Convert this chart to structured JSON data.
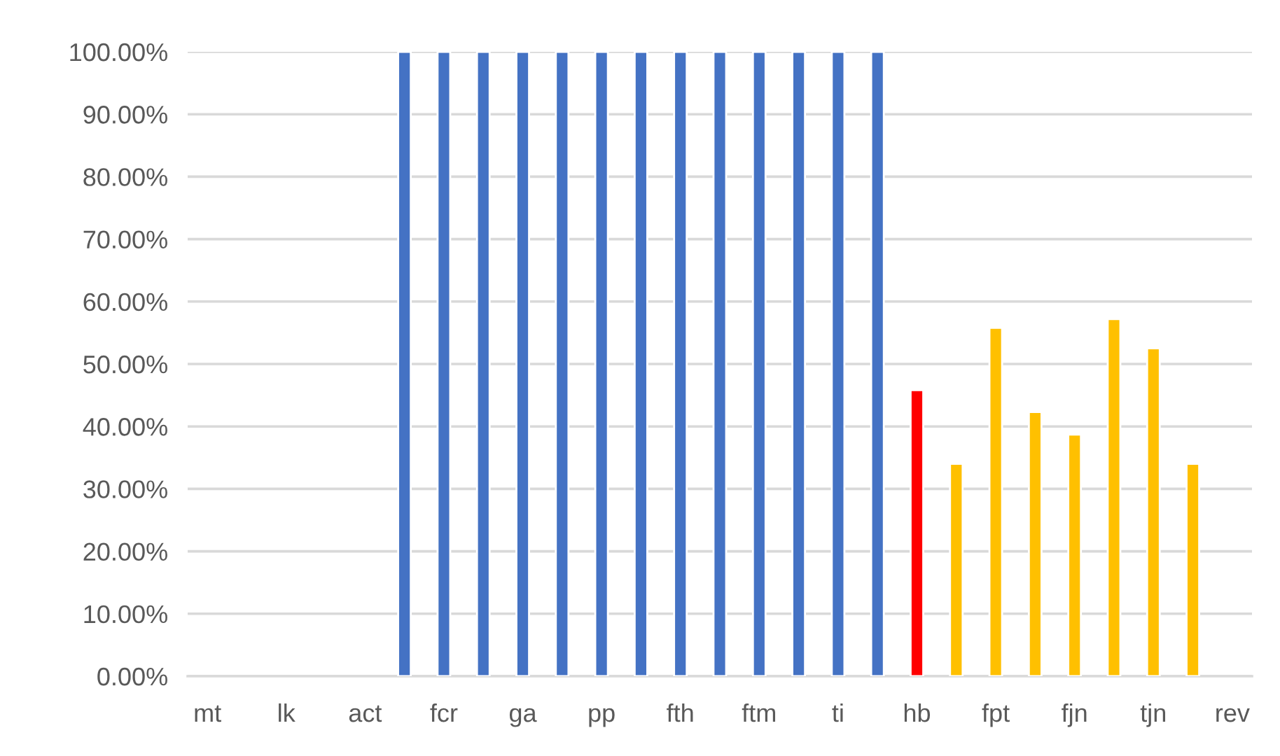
{
  "chart_data": {
    "type": "bar",
    "categories": [
      "mt",
      null,
      "lk",
      null,
      "act",
      null,
      "fcr",
      null,
      "ga",
      null,
      "pp",
      null,
      "fth",
      null,
      "ftm",
      null,
      "ti",
      null,
      "hb",
      null,
      "fpt",
      null,
      "fjn",
      null,
      "tjn",
      null,
      "rev"
    ],
    "values": [
      null,
      null,
      null,
      null,
      null,
      100,
      100,
      100,
      100,
      100,
      100,
      100,
      100,
      100,
      100,
      100,
      100,
      100,
      45.8,
      34.0,
      55.8,
      42.3,
      38.7,
      57.2,
      52.5,
      34.0,
      null
    ],
    "colors": [
      null,
      null,
      null,
      null,
      null,
      "#4472c4",
      "#4472c4",
      "#4472c4",
      "#4472c4",
      "#4472c4",
      "#4472c4",
      "#4472c4",
      "#4472c4",
      "#4472c4",
      "#4472c4",
      "#4472c4",
      "#4472c4",
      "#4472c4",
      "#ff0000",
      "#ffc000",
      "#ffc000",
      "#ffc000",
      "#ffc000",
      "#ffc000",
      "#ffc000",
      "#ffc000",
      null
    ],
    "ylim": [
      0,
      100
    ],
    "yticks": [
      {
        "value": 0,
        "label": "0.00%"
      },
      {
        "value": 10,
        "label": "10.00%"
      },
      {
        "value": 20,
        "label": "20.00%"
      },
      {
        "value": 30,
        "label": "30.00%"
      },
      {
        "value": 40,
        "label": "40.00%"
      },
      {
        "value": 50,
        "label": "50.00%"
      },
      {
        "value": 60,
        "label": "60.00%"
      },
      {
        "value": 70,
        "label": "70.00%"
      },
      {
        "value": 80,
        "label": "80.00%"
      },
      {
        "value": 90,
        "label": "90.00%"
      },
      {
        "value": 100,
        "label": "100.00%"
      }
    ],
    "grid": "y"
  }
}
